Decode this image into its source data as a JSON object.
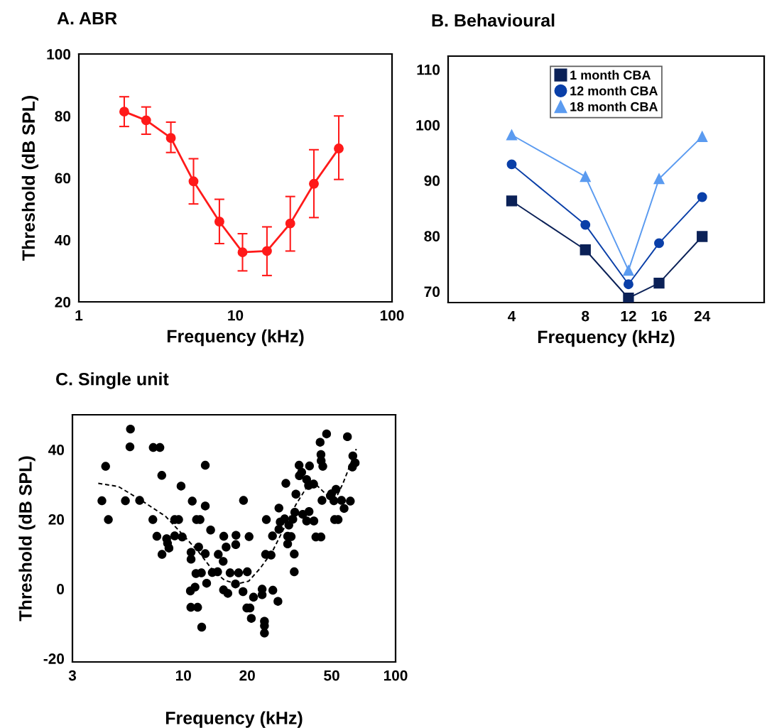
{
  "chart_data": [
    {
      "type": "line",
      "title": "A. ABR",
      "xlabel": "Frequency (kHz)",
      "ylabel": "Threshold (dB SPL)",
      "log": "x",
      "xlim": [
        1,
        100
      ],
      "xticks": [
        1,
        10,
        100
      ],
      "ylim": [
        20,
        100
      ],
      "yticks": [
        20,
        40,
        60,
        80,
        100
      ],
      "grid": false,
      "legend": false,
      "marker": "circle",
      "line_style": "solid",
      "x": [
        1.95,
        2.69,
        3.87,
        5.4,
        7.9,
        11.1,
        15.9,
        22.4,
        31.7,
        45.7
      ],
      "series": [
        {
          "color": "#ff1a1a",
          "values": [
            81.4,
            78.6,
            72.9,
            58.9,
            45.9,
            36.0,
            36.4,
            45.3,
            58.1,
            69.5
          ],
          "errors": [
            [
              76.6,
              86.2
            ],
            [
              74.1,
              82.9
            ],
            [
              68.2,
              78.0
            ],
            [
              51.6,
              66.2
            ],
            [
              38.8,
              53.1
            ],
            [
              30.0,
              42.0
            ],
            [
              28.5,
              44.2
            ],
            [
              36.4,
              54.0
            ],
            [
              47.2,
              69.1
            ],
            [
              59.5,
              80.0
            ]
          ]
        }
      ]
    },
    {
      "type": "line",
      "title": "B. Behavioural",
      "xlabel": "Frequency (kHz)",
      "log": "x",
      "xlim": [
        2.2,
        43
      ],
      "xticks": [
        4,
        8,
        12,
        16,
        24
      ],
      "ylim": [
        68,
        112.4
      ],
      "yticks": [
        70,
        80,
        90,
        100,
        110
      ],
      "grid": false,
      "legend": "top",
      "line_style": "solid",
      "x": [
        4,
        8,
        12,
        16,
        24
      ],
      "series": [
        {
          "name": "1 month CBA",
          "color": "#0b2157",
          "marker": "square",
          "values": [
            86.3,
            77.5,
            68.8,
            71.5,
            79.9
          ]
        },
        {
          "name": "12 month CBA",
          "color": "#0a3fa8",
          "marker": "circle",
          "values": [
            92.9,
            82.0,
            71.3,
            78.7,
            87.0
          ]
        },
        {
          "name": "18 month CBA",
          "color": "#5b9bf0",
          "marker": "triangle",
          "values": [
            98.2,
            90.7,
            73.8,
            90.3,
            97.9
          ]
        }
      ]
    },
    {
      "type": "scatter",
      "title": "C. Single unit",
      "xlabel": "Frequency (kHz)",
      "ylabel": "Threshold (dB SPL)",
      "log": "x",
      "xlim": [
        3,
        100
      ],
      "xticks": [
        3,
        10,
        20,
        50,
        100
      ],
      "ylim": [
        -21,
        50
      ],
      "yticks": [
        -20,
        0,
        20,
        40
      ],
      "grid": false,
      "legend": false,
      "series": [
        {
          "type": "scatter",
          "color": "#000000",
          "marker": "circle",
          "x": [
            5.63,
            5.6,
            7.21,
            7.75,
            4.3,
            12.68,
            7.91,
            9.75,
            4.13,
            5.33,
            6.22,
            11.01,
            12.68,
            19.2,
            4.43,
            7.18,
            9.1,
            9.5,
            11.53,
            11.98,
            13.44,
            7.5,
            8.34,
            8.42,
            8.55,
            7.93,
            9.1,
            9.88,
            10.87,
            10.87,
            11.8,
            12.68,
            15.5,
            17.7,
            17.65,
            15.9,
            14.6,
            15.4,
            20.4,
            24.6,
            28.2,
            26.3,
            24.4,
            25.9,
            28.2,
            28.6,
            30.0,
            31.4,
            32.8,
            33.5,
            30.4,
            33.9,
            35.1,
            39.3,
            36.1,
            35.2,
            38.1,
            38.9,
            41.1,
            36.5,
            39.1,
            38.1,
            41.2,
            31.0,
            32.2,
            31.0,
            33.3,
            33.3,
            44.1,
            47.3,
            44.5,
            44.6,
            45.4,
            59.3,
            62.9,
            64.5,
            62.6,
            45.0,
            49.9,
            52.4,
            49.3,
            51.2,
            55.6,
            61.2,
            57.2,
            51.6,
            53.6,
            42.1,
            44.5,
            11.46,
            12.16,
            13.68,
            14.5,
            16.6,
            18.2,
            20.0,
            12.87,
            17.6,
            10.79,
            11.35,
            15.46,
            16.2,
            19.1,
            23.5,
            23.5,
            26.4,
            21.4,
            27.9,
            10.84,
            11.67,
            19.9,
            20.6,
            20.9,
            12.2,
            24.1,
            24.1,
            24.1
          ],
          "values": [
            45.9,
            40.8,
            40.6,
            40.6,
            35.2,
            35.5,
            32.6,
            29.5,
            25.3,
            25.3,
            25.4,
            25.2,
            23.8,
            25.4,
            19.9,
            19.9,
            19.9,
            19.9,
            19.9,
            19.9,
            16.9,
            15.1,
            14.4,
            13.1,
            11.7,
            9.9,
            15.2,
            14.9,
            10.5,
            8.5,
            12.0,
            10.1,
            15.1,
            15.4,
            12.7,
            12.0,
            9.9,
            7.9,
            15.0,
            19.9,
            23.2,
            15.2,
            9.9,
            9.7,
            17.1,
            19.2,
            20.1,
            18.3,
            20.0,
            22.0,
            30.3,
            27.2,
            35.5,
            35.3,
            33.5,
            32.5,
            31.4,
            29.7,
            30.1,
            21.4,
            22.2,
            19.5,
            19.5,
            15.1,
            15.0,
            12.9,
            10.0,
            4.9,
            42.1,
            44.5,
            38.6,
            36.8,
            35.2,
            43.7,
            38.2,
            36.2,
            35.0,
            25.4,
            27.3,
            28.6,
            26.7,
            25.3,
            25.4,
            25.2,
            23.1,
            19.9,
            19.9,
            14.9,
            14.9,
            4.4,
            4.6,
            4.7,
            4.9,
            4.6,
            4.6,
            4.9,
            1.6,
            1.4,
            -0.6,
            0.5,
            -0.3,
            -1.3,
            -0.8,
            -0.1,
            -1.7,
            -0.4,
            -2.4,
            -3.6,
            -5.3,
            -5.3,
            -5.5,
            -5.5,
            -8.5,
            -11.0,
            -9.3,
            -10.6,
            -12.7
          ]
        },
        {
          "type": "line",
          "color": "#000000",
          "marker": "none",
          "line_style": "dashed",
          "x": [
            3.97,
            4.94,
            6.38,
            8.25,
            9.88,
            11.81,
            13.8,
            15.6,
            17.8,
            20.3,
            23.0,
            26.2,
            29.8,
            33.9,
            38.6,
            41.6,
            45.0,
            48.6,
            52.6,
            56.5,
            61.2,
            65.3
          ],
          "values": [
            30.3,
            29.4,
            25.3,
            20.8,
            15.7,
            10.6,
            5.2,
            2.5,
            1.4,
            2.2,
            5.9,
            10.6,
            17.4,
            24.2,
            29.7,
            30.3,
            28.3,
            26.3,
            26.3,
            30.3,
            35.7,
            40.2
          ]
        }
      ]
    }
  ]
}
